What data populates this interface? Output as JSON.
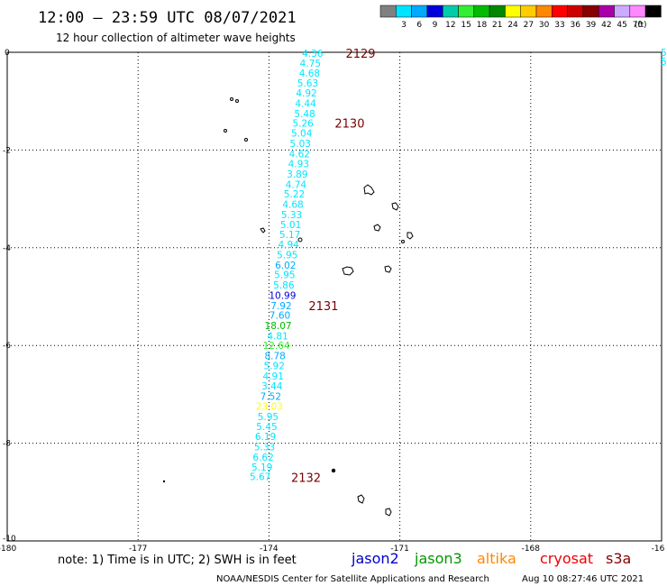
{
  "header": {
    "title": "12:00 – 23:59 UTC 08/07/2021",
    "subtitle": "12 hour collection of altimeter wave heights"
  },
  "legend": {
    "unit": "(ft)",
    "swatches": [
      {
        "value": "",
        "color": "#808080"
      },
      {
        "value": "3",
        "color": "#00e5ff"
      },
      {
        "value": "6",
        "color": "#00aaff"
      },
      {
        "value": "9",
        "color": "#0000dd"
      },
      {
        "value": "12",
        "color": "#00ccaa"
      },
      {
        "value": "15",
        "color": "#33ee33"
      },
      {
        "value": "18",
        "color": "#00bb00"
      },
      {
        "value": "21",
        "color": "#008800"
      },
      {
        "value": "24",
        "color": "#ffff00"
      },
      {
        "value": "27",
        "color": "#ffcc00"
      },
      {
        "value": "30",
        "color": "#ff8800"
      },
      {
        "value": "33",
        "color": "#ff0000"
      },
      {
        "value": "36",
        "color": "#cc0000"
      },
      {
        "value": "39",
        "color": "#880000"
      },
      {
        "value": "42",
        "color": "#aa00aa"
      },
      {
        "value": "45",
        "color": "#ccaaff"
      },
      {
        "value": "70",
        "color": "#ff88ff"
      },
      {
        "value": "",
        "color": "#000000"
      }
    ]
  },
  "axes": {
    "lon_ticks": [
      "-180",
      "-177",
      "-174",
      "-171",
      "-168",
      "-16"
    ],
    "lat_ticks": [
      "0",
      "-2",
      "-4",
      "-6",
      "-8",
      "-10"
    ]
  },
  "track": {
    "points": [
      {
        "value": "4.36",
        "color": "#00e5ff",
        "lon": -173.0,
        "lat": -0.02
      },
      {
        "value": "4.75",
        "color": "#00e5ff",
        "lon": -173.05,
        "lat": -0.22
      },
      {
        "value": "4.68",
        "color": "#00e5ff",
        "lon": -173.07,
        "lat": -0.42
      },
      {
        "value": "5.63",
        "color": "#00e5ff",
        "lon": -173.11,
        "lat": -0.63
      },
      {
        "value": "4.92",
        "color": "#00e5ff",
        "lon": -173.14,
        "lat": -0.83
      },
      {
        "value": "4.44",
        "color": "#00e5ff",
        "lon": -173.16,
        "lat": -1.04
      },
      {
        "value": "5.48",
        "color": "#00e5ff",
        "lon": -173.18,
        "lat": -1.25
      },
      {
        "value": "5.26",
        "color": "#00e5ff",
        "lon": -173.22,
        "lat": -1.45
      },
      {
        "value": "5.04",
        "color": "#00e5ff",
        "lon": -173.25,
        "lat": -1.65
      },
      {
        "value": "5.03",
        "color": "#00e5ff",
        "lon": -173.28,
        "lat": -1.86
      },
      {
        "value": "4.62",
        "color": "#00e5ff",
        "lon": -173.3,
        "lat": -2.08
      },
      {
        "value": "4.93",
        "color": "#00e5ff",
        "lon": -173.32,
        "lat": -2.28
      },
      {
        "value": "3.89",
        "color": "#00e5ff",
        "lon": -173.35,
        "lat": -2.49
      },
      {
        "value": "4.74",
        "color": "#00e5ff",
        "lon": -173.38,
        "lat": -2.7
      },
      {
        "value": "5.22",
        "color": "#00e5ff",
        "lon": -173.42,
        "lat": -2.9
      },
      {
        "value": "4.68",
        "color": "#00e5ff",
        "lon": -173.45,
        "lat": -3.11
      },
      {
        "value": "5.33",
        "color": "#00e5ff",
        "lon": -173.48,
        "lat": -3.32
      },
      {
        "value": "5.01",
        "color": "#00e5ff",
        "lon": -173.5,
        "lat": -3.52
      },
      {
        "value": "5.17",
        "color": "#00e5ff",
        "lon": -173.52,
        "lat": -3.73
      },
      {
        "value": "4.94",
        "color": "#00e5ff",
        "lon": -173.55,
        "lat": -3.93
      },
      {
        "value": "5.95",
        "color": "#00e5ff",
        "lon": -173.58,
        "lat": -4.14
      },
      {
        "value": "6.02",
        "color": "#00aaff",
        "lon": -173.62,
        "lat": -4.35
      },
      {
        "value": "5.95",
        "color": "#00e5ff",
        "lon": -173.64,
        "lat": -4.55
      },
      {
        "value": "5.86",
        "color": "#00e5ff",
        "lon": -173.66,
        "lat": -4.76
      },
      {
        "value": "10.99",
        "color": "#0000dd",
        "lon": -173.69,
        "lat": -4.97
      },
      {
        "value": "7.92",
        "color": "#00aaff",
        "lon": -173.72,
        "lat": -5.18
      },
      {
        "value": "7.60",
        "color": "#00aaff",
        "lon": -173.75,
        "lat": -5.38
      },
      {
        "value": "18.07",
        "color": "#00bb00",
        "lon": -173.79,
        "lat": -5.59
      },
      {
        "value": "4.81",
        "color": "#00e5ff",
        "lon": -173.8,
        "lat": -5.8
      },
      {
        "value": "12.64",
        "color": "#33ee33",
        "lon": -173.83,
        "lat": -6.0
      },
      {
        "value": "8.78",
        "color": "#00aaff",
        "lon": -173.86,
        "lat": -6.21
      },
      {
        "value": "5.92",
        "color": "#00e5ff",
        "lon": -173.88,
        "lat": -6.41
      },
      {
        "value": "4.91",
        "color": "#00e5ff",
        "lon": -173.9,
        "lat": -6.62
      },
      {
        "value": "3.44",
        "color": "#00e5ff",
        "lon": -173.93,
        "lat": -6.83
      },
      {
        "value": "7.52",
        "color": "#00aaff",
        "lon": -173.96,
        "lat": -7.04
      },
      {
        "value": "23.03",
        "color": "#ffff00",
        "lon": -173.99,
        "lat": -7.24
      },
      {
        "value": "5.95",
        "color": "#00e5ff",
        "lon": -174.02,
        "lat": -7.45
      },
      {
        "value": "5.45",
        "color": "#00e5ff",
        "lon": -174.05,
        "lat": -7.66
      },
      {
        "value": "6.19",
        "color": "#00e5ff",
        "lon": -174.08,
        "lat": -7.86
      },
      {
        "value": "5.33",
        "color": "#00e5ff",
        "lon": -174.1,
        "lat": -8.07
      },
      {
        "value": "6.62",
        "color": "#00e5ff",
        "lon": -174.13,
        "lat": -8.28
      },
      {
        "value": "5.19",
        "color": "#00e5ff",
        "lon": -174.16,
        "lat": -8.49
      },
      {
        "value": "5.67",
        "color": "#00e5ff",
        "lon": -174.2,
        "lat": -8.68
      }
    ],
    "time_labels": [
      {
        "text": "2129",
        "lon": -171.9,
        "lat": -0.02
      },
      {
        "text": "2130",
        "lon": -172.15,
        "lat": -1.45
      },
      {
        "text": "2131",
        "lon": -172.75,
        "lat": -5.18
      },
      {
        "text": "2132",
        "lon": -173.15,
        "lat": -8.7
      }
    ]
  },
  "edge_values": [
    "5",
    "5"
  ],
  "notes": {
    "text": "note: 1) Time is in UTC; 2) SWH is in feet"
  },
  "satellites": [
    {
      "name": "jason2",
      "color": "#0000cc"
    },
    {
      "name": "jason3",
      "color": "#009900"
    },
    {
      "name": "altika",
      "color": "#ff8800"
    },
    {
      "name": "cryosat",
      "color": "#ee0000"
    },
    {
      "name": "s3a",
      "color": "#880000"
    }
  ],
  "footer": {
    "credit": "NOAA/NESDIS Center for Satellite Applications and Research",
    "timestamp": "Aug 10 08:27:46 UTC 2021"
  }
}
